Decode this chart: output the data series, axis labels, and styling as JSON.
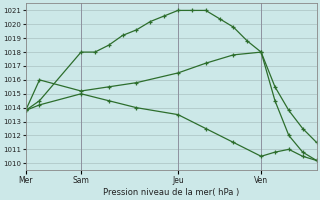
{
  "background_color": "#cce8e8",
  "grid_color": "#b0c8c8",
  "line_color": "#2d6e2d",
  "title": "Pression niveau de la mer( hPa )",
  "ylim": [
    1009.5,
    1021.5
  ],
  "yticks": [
    1010,
    1011,
    1012,
    1013,
    1014,
    1015,
    1016,
    1017,
    1018,
    1019,
    1020,
    1021
  ],
  "day_labels": [
    "Mer",
    "Sam",
    "Jeu",
    "Ven"
  ],
  "day_positions": [
    0,
    4,
    11,
    17
  ],
  "xlim": [
    0,
    21
  ],
  "line1_x": [
    0,
    1,
    4,
    5,
    6,
    7,
    8,
    9,
    10,
    11,
    12,
    13,
    14,
    15,
    16,
    17,
    18,
    19,
    20,
    21
  ],
  "line1_y": [
    1013.8,
    1014.5,
    1018.0,
    1018.0,
    1018.5,
    1019.2,
    1019.6,
    1020.2,
    1020.6,
    1021.0,
    1021.0,
    1021.0,
    1020.4,
    1019.8,
    1018.8,
    1018.0,
    1015.5,
    1013.8,
    1012.5,
    1011.5
  ],
  "line2_x": [
    0,
    1,
    4,
    6,
    8,
    11,
    13,
    15,
    17,
    18,
    19,
    20,
    21
  ],
  "line2_y": [
    1013.8,
    1016.0,
    1015.2,
    1015.5,
    1015.8,
    1016.5,
    1017.2,
    1017.8,
    1018.0,
    1014.5,
    1012.0,
    1010.8,
    1010.2
  ],
  "line3_x": [
    0,
    1,
    4,
    6,
    8,
    11,
    13,
    15,
    17,
    18,
    19,
    20,
    21
  ],
  "line3_y": [
    1013.8,
    1014.2,
    1015.0,
    1014.5,
    1014.0,
    1013.5,
    1012.5,
    1011.5,
    1010.5,
    1010.8,
    1011.0,
    1010.5,
    1010.2
  ]
}
